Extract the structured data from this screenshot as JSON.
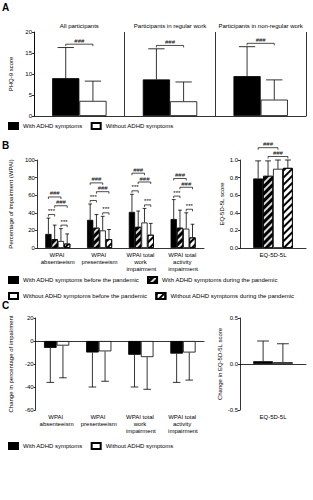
{
  "chart_data": [
    {
      "panel": "A",
      "type": "bar",
      "legend": "bottom",
      "grid": false,
      "categories": [
        "All participants",
        "Participants in regular work",
        "Participants in non-regular work"
      ],
      "y_label": "PHQ-9 score",
      "ylim": [
        0,
        20
      ],
      "yticks": [
        0,
        5,
        10,
        15,
        20
      ],
      "series": [
        {
          "name": "With ADHD symptoms",
          "color": "#000000",
          "values": [
            9.0,
            8.7,
            9.5
          ],
          "errors": [
            7.3,
            7.3,
            7.0
          ]
        },
        {
          "name": "Without ADHD symptoms",
          "color": "#ffffff",
          "values": [
            3.6,
            3.5,
            3.9
          ],
          "errors": [
            4.7,
            4.6,
            4.7
          ]
        }
      ],
      "annotations": [
        {
          "text": "###",
          "category": 0,
          "series": [
            0,
            1
          ]
        },
        {
          "text": "###",
          "category": 1,
          "series": [
            0,
            1
          ]
        },
        {
          "text": "###",
          "category": 2,
          "series": [
            0,
            1
          ]
        }
      ]
    },
    {
      "panel": "B",
      "type": "bar",
      "legend": "bottom",
      "grid": false,
      "categories": [
        "WPAI absenteeism",
        "WPAI presenteeism",
        "WPAI total work impairment",
        "WPAI total activity impairment"
      ],
      "y_label": "Percentage of impairment (WPAI)",
      "ylim": [
        0,
        100
      ],
      "yticks": [
        0,
        20,
        40,
        60,
        80,
        100
      ],
      "series": [
        {
          "name": "With ADHD symptoms before the pandemic",
          "color": "#000000",
          "marker": "solid",
          "values": [
            16,
            32,
            41,
            33
          ],
          "errors": [
            18,
            18,
            20,
            22
          ]
        },
        {
          "name": "With ADHD symptoms during the pandemic",
          "color": "#000000",
          "marker": "hatched",
          "values": [
            10,
            23,
            24,
            23
          ],
          "errors": [
            16,
            15,
            18,
            20
          ]
        },
        {
          "name": "Without ADHD symptoms before the pandemic",
          "color": "#ffffff",
          "marker": "solid",
          "values": [
            8,
            20,
            29,
            22
          ],
          "errors": [
            14,
            16,
            16,
            18
          ]
        },
        {
          "name": "Without ADHD symptoms during the pandemic",
          "color": "#ffffff",
          "marker": "hatched",
          "values": [
            5,
            10,
            15,
            12
          ],
          "errors": [
            11,
            11,
            13,
            15
          ]
        }
      ],
      "annotations": [
        {
          "text": "***",
          "category": 0,
          "series": [
            0,
            1
          ]
        },
        {
          "text": "***",
          "category": 0,
          "series": [
            2,
            3
          ]
        },
        {
          "text": "###",
          "category": 0,
          "series": [
            1,
            3
          ]
        },
        {
          "text": "###",
          "category": 0,
          "series": [
            0,
            2
          ]
        },
        {
          "text": "***",
          "category": 1,
          "series": [
            0,
            1
          ]
        },
        {
          "text": "***",
          "category": 1,
          "series": [
            2,
            3
          ]
        },
        {
          "text": "###",
          "category": 1,
          "series": [
            1,
            3
          ]
        },
        {
          "text": "###",
          "category": 1,
          "series": [
            0,
            2
          ]
        },
        {
          "text": "***",
          "category": 2,
          "series": [
            0,
            1
          ]
        },
        {
          "text": "***",
          "category": 2,
          "series": [
            2,
            3
          ]
        },
        {
          "text": "###",
          "category": 2,
          "series": [
            1,
            3
          ]
        },
        {
          "text": "###",
          "category": 2,
          "series": [
            0,
            2
          ]
        },
        {
          "text": "***",
          "category": 3,
          "series": [
            0,
            1
          ]
        },
        {
          "text": "***",
          "category": 3,
          "series": [
            2,
            3
          ]
        },
        {
          "text": "###",
          "category": 3,
          "series": [
            1,
            3
          ]
        },
        {
          "text": "###",
          "category": 3,
          "series": [
            0,
            2
          ]
        }
      ]
    },
    {
      "type": "bar",
      "grid": false,
      "categories": [
        "EQ-5D-5L"
      ],
      "y_label": "EQ-5D-5L score",
      "ylim": [
        0,
        1
      ],
      "yticks": [
        {
          "value": 0,
          "label": "0.0"
        },
        0.2,
        0.4,
        0.6,
        0.8,
        {
          "value": 1,
          "label": "1.0"
        }
      ],
      "series": [
        {
          "name": "With ADHD symptoms before the pandemic",
          "color": "#000000",
          "marker": "solid",
          "values": [
            0.79
          ],
          "errors": [
            0.2
          ]
        },
        {
          "name": "With ADHD symptoms during the pandemic",
          "color": "#000000",
          "marker": "hatched",
          "values": [
            0.82
          ],
          "errors": [
            0.17
          ]
        },
        {
          "name": "Without ADHD symptoms before the pandemic",
          "color": "#ffffff",
          "marker": "solid",
          "values": [
            0.9
          ],
          "errors": [
            0.1
          ]
        },
        {
          "name": "Without ADHD symptoms during the pandemic",
          "color": "#ffffff",
          "marker": "hatched",
          "values": [
            0.91
          ],
          "errors": [
            0.09
          ]
        }
      ],
      "annotations": [
        {
          "text": "###",
          "category": 0,
          "series": [
            1,
            3
          ]
        },
        {
          "text": "###",
          "category": 0,
          "series": [
            0,
            2
          ]
        }
      ]
    },
    {
      "panel": "C",
      "type": "bar",
      "legend": "bottom",
      "grid": false,
      "categories": [
        "WPAI absenteeism",
        "WPAI presenteeism",
        "WPAI total work impairment",
        "WPAI total activity impairment"
      ],
      "y_label": "Change in percentage of impairment",
      "ylim": [
        -60,
        20
      ],
      "yticks": [
        -60,
        -40,
        -20,
        0,
        20
      ],
      "series": [
        {
          "name": "With ADHD symptoms",
          "color": "#000000",
          "values": [
            -6,
            -10,
            -12,
            -11
          ],
          "errors": [
            30,
            30,
            28,
            25
          ]
        },
        {
          "name": "Without ADHD symptoms",
          "color": "#ffffff",
          "values": [
            -4,
            -9,
            -14,
            -10
          ],
          "errors": [
            28,
            26,
            28,
            24
          ]
        }
      ]
    },
    {
      "type": "bar",
      "grid": false,
      "categories": [
        "EQ-5D-5L"
      ],
      "y_label": "Change in EQ-5D-5L score",
      "ylim": [
        -0.5,
        0.5
      ],
      "yticks": [
        -0.5,
        {
          "value": 0,
          "label": "0.0"
        },
        0.5
      ],
      "series": [
        {
          "name": "With ADHD symptoms",
          "color": "#000000",
          "values": [
            0.03
          ],
          "errors": [
            0.22
          ]
        },
        {
          "name": "Without ADHD symptoms",
          "color": "#ffffff",
          "values": [
            0.02
          ],
          "errors": [
            0.2
          ]
        }
      ]
    }
  ]
}
